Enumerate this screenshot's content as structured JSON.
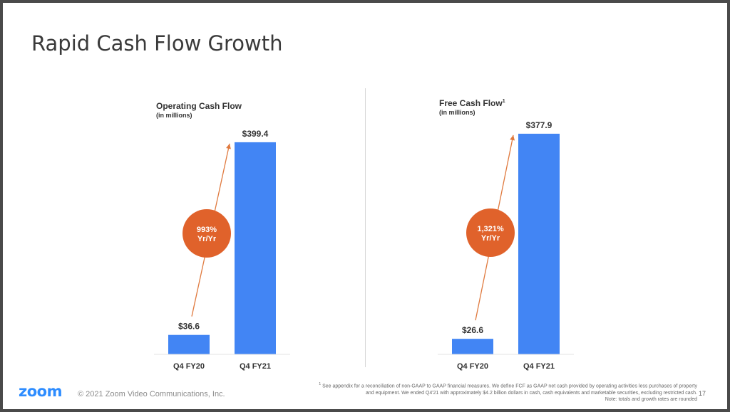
{
  "slide": {
    "title": "Rapid Cash Flow Growth",
    "page_number": "17"
  },
  "footer": {
    "logo": "zoom",
    "copyright": "© 2021 Zoom Video Communications, Inc.",
    "footnote_marker": "1",
    "footnote_lines": [
      "See appendix for a reconciliation of non-GAAP to GAAP financial measures. We define FCF as GAAP net cash provided by operating activities less purchases of property",
      "and equipment. We ended Q4'21 with approximately $4.2 billion dollars in cash, cash equivalents and marketable securities, excluding restricted cash.",
      "Note: totals and growth rates are rounded"
    ]
  },
  "colors": {
    "bar": "#4285f4",
    "arrow": "#e07a3f",
    "growth_badge": "#e0622b",
    "title_text": "#3a3a3a",
    "logo": "#2d8cff"
  },
  "chart_data": [
    {
      "type": "bar",
      "title": "Operating Cash Flow",
      "title_marker": "",
      "subtitle": "(in millions)",
      "categories": [
        "Q4 FY20",
        "Q4 FY21"
      ],
      "values": [
        36.6,
        399.4
      ],
      "data_labels": [
        "$36.6",
        "$399.4"
      ],
      "growth_label": [
        "993%",
        "Yr/Yr"
      ],
      "ylim": [
        0,
        410
      ],
      "grid": false,
      "legend": "none"
    },
    {
      "type": "bar",
      "title": "Free Cash Flow",
      "title_marker": "1",
      "subtitle": "(in millions)",
      "categories": [
        "Q4 FY20",
        "Q4 FY21"
      ],
      "values": [
        26.6,
        377.9
      ],
      "data_labels": [
        "$26.6",
        "$377.9"
      ],
      "growth_label": [
        "1,321%",
        "Yr/Yr"
      ],
      "ylim": [
        0,
        390
      ],
      "grid": false,
      "legend": "none"
    }
  ]
}
